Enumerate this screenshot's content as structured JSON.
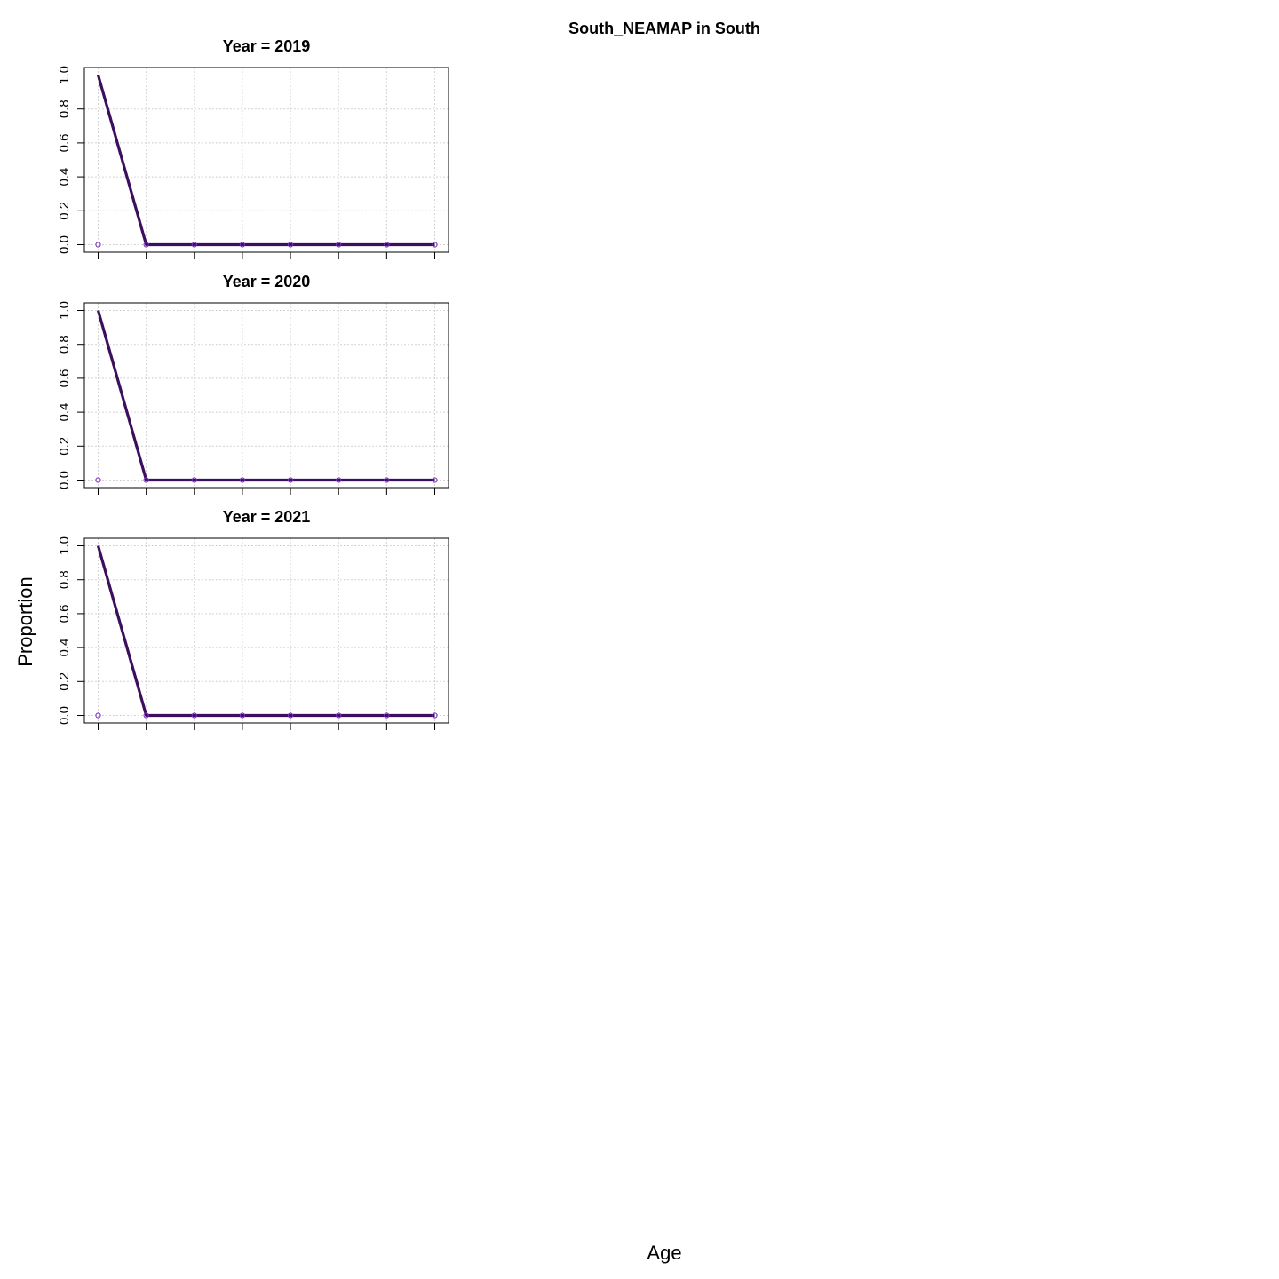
{
  "title": "South_NEAMAP in South",
  "xlabel": "Age",
  "ylabel": "Proportion",
  "colors": {
    "line": "#3b0f5e",
    "obs_point": "#7b2fbf",
    "grid": "#d3d3d3"
  },
  "chart_data": {
    "type": "line",
    "title": "South_NEAMAP in South",
    "xlabel": "Age",
    "ylabel": "Proportion",
    "ylim": [
      0,
      1
    ],
    "yticks": [
      "0.0",
      "0.2",
      "0.4",
      "0.6",
      "0.8",
      "1.0"
    ],
    "grid": true,
    "panels": [
      {
        "title": "Year = 2019",
        "x": [
          1,
          2,
          3,
          4,
          5,
          6,
          7,
          8
        ],
        "predicted": [
          1,
          0,
          0,
          0,
          0,
          0,
          0,
          0
        ],
        "observed": [
          0,
          0,
          0,
          0,
          0,
          0,
          0,
          0
        ]
      },
      {
        "title": "Year = 2020",
        "x": [
          1,
          2,
          3,
          4,
          5,
          6,
          7,
          8
        ],
        "predicted": [
          1,
          0,
          0,
          0,
          0,
          0,
          0,
          0
        ],
        "observed": [
          0,
          0,
          0,
          0,
          0,
          0,
          0,
          0
        ]
      },
      {
        "title": "Year = 2021",
        "x": [
          1,
          2,
          3,
          4,
          5,
          6,
          7,
          8
        ],
        "predicted": [
          1,
          0,
          0,
          0,
          0,
          0,
          0,
          0
        ],
        "observed": [
          0,
          0,
          0,
          0,
          0,
          0,
          0,
          0
        ]
      }
    ]
  }
}
